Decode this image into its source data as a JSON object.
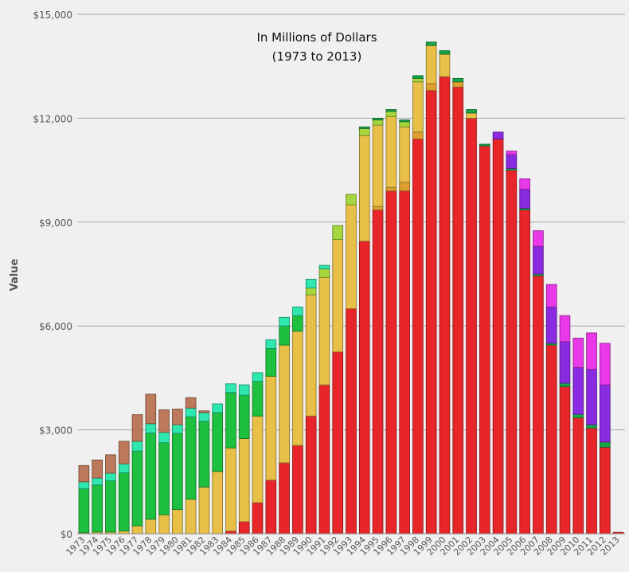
{
  "chart_data": {
    "type": "bar",
    "stacked": true,
    "annotation_line1": "In Millions of Dollars",
    "annotation_line2": "(1973 to 2013)",
    "ylabel": "Value",
    "ylim": [
      0,
      15000
    ],
    "yticks": [
      {
        "value": 0,
        "label": "$0"
      },
      {
        "value": 3000,
        "label": "$3,000"
      },
      {
        "value": 6000,
        "label": "$6,000"
      },
      {
        "value": 9000,
        "label": "$9,000"
      },
      {
        "value": 12000,
        "label": "$12,000"
      },
      {
        "value": 15000,
        "label": "$15,000"
      }
    ],
    "grid": true,
    "categories": [
      "1973",
      "1974",
      "1975",
      "1976",
      "1977",
      "1978",
      "1979",
      "1980",
      "1981",
      "1982",
      "1983",
      "1984",
      "1985",
      "1986",
      "1987",
      "1988",
      "1989",
      "1990",
      "1991",
      "1992",
      "1993",
      "1994",
      "1995",
      "1996",
      "1997",
      "1998",
      "1999",
      "2000",
      "2001",
      "2002",
      "2003",
      "2004",
      "2005",
      "2006",
      "2007",
      "2008",
      "2009",
      "2010",
      "2011",
      "2012",
      "2013"
    ],
    "series": [
      {
        "color": "#e8262a",
        "values": [
          0,
          0,
          0,
          0,
          0,
          0,
          0,
          0,
          0,
          0,
          0,
          80,
          350,
          900,
          1550,
          2050,
          2550,
          3400,
          4300,
          5250,
          6500,
          8450,
          9350,
          9900,
          9900,
          11400,
          12800,
          13200,
          12900,
          12000,
          11200,
          11400,
          10500,
          9350,
          7450,
          5450,
          4250,
          3350,
          3050,
          2500,
          40
        ]
      },
      {
        "color": "#e0a030",
        "values": [
          0,
          0,
          0,
          0,
          0,
          0,
          0,
          0,
          0,
          0,
          0,
          0,
          0,
          0,
          0,
          0,
          0,
          0,
          0,
          0,
          0,
          0,
          100,
          100,
          250,
          200,
          200,
          0,
          150,
          0,
          0,
          0,
          0,
          0,
          0,
          0,
          0,
          0,
          0,
          0,
          0
        ]
      },
      {
        "color": "#e8c048",
        "values": [
          30,
          50,
          50,
          80,
          230,
          420,
          550,
          700,
          1000,
          1350,
          1800,
          2400,
          2400,
          2500,
          3000,
          3400,
          3300,
          3500,
          3100,
          3250,
          3000,
          3050,
          2350,
          2050,
          1600,
          1450,
          1100,
          650,
          0,
          150,
          0,
          0,
          0,
          0,
          0,
          0,
          0,
          0,
          0,
          0,
          0
        ]
      },
      {
        "color": "#a6d63e",
        "values": [
          0,
          0,
          0,
          0,
          0,
          0,
          0,
          0,
          0,
          0,
          0,
          0,
          0,
          0,
          0,
          0,
          0,
          200,
          250,
          400,
          300,
          200,
          150,
          150,
          150,
          100,
          0,
          0,
          0,
          0,
          0,
          0,
          0,
          0,
          0,
          0,
          0,
          0,
          0,
          0,
          0
        ]
      },
      {
        "color": "#1ec040",
        "values": [
          1270,
          1360,
          1480,
          1680,
          2160,
          2490,
          2080,
          2200,
          2380,
          1900,
          1700,
          1600,
          1250,
          1000,
          800,
          550,
          450,
          0,
          0,
          0,
          0,
          0,
          0,
          0,
          0,
          0,
          0,
          0,
          0,
          0,
          0,
          0,
          0,
          0,
          0,
          0,
          0,
          0,
          0,
          0,
          0
        ]
      },
      {
        "color": "#18a848",
        "values": [
          0,
          0,
          0,
          0,
          0,
          0,
          0,
          0,
          0,
          0,
          0,
          0,
          0,
          0,
          0,
          0,
          0,
          0,
          0,
          0,
          0,
          50,
          50,
          50,
          50,
          80,
          100,
          100,
          100,
          100,
          50,
          0,
          50,
          50,
          50,
          50,
          100,
          100,
          100,
          150,
          0
        ]
      },
      {
        "color": "#2ee8b0",
        "values": [
          200,
          200,
          220,
          260,
          280,
          270,
          300,
          250,
          250,
          250,
          250,
          250,
          300,
          250,
          250,
          250,
          250,
          250,
          100,
          0,
          0,
          0,
          0,
          0,
          0,
          0,
          0,
          0,
          0,
          0,
          0,
          0,
          0,
          0,
          0,
          0,
          0,
          0,
          0,
          0,
          0
        ]
      },
      {
        "color": "#bc7a5a",
        "values": [
          470,
          520,
          530,
          650,
          770,
          850,
          650,
          450,
          300,
          50,
          0,
          0,
          0,
          0,
          0,
          0,
          0,
          0,
          0,
          0,
          0,
          0,
          0,
          0,
          0,
          0,
          0,
          0,
          0,
          0,
          0,
          0,
          0,
          0,
          0,
          0,
          0,
          0,
          0,
          0,
          0
        ]
      },
      {
        "color": "#8a2be2",
        "values": [
          0,
          0,
          0,
          0,
          0,
          0,
          0,
          0,
          0,
          0,
          0,
          0,
          0,
          0,
          0,
          0,
          0,
          0,
          0,
          0,
          0,
          0,
          0,
          0,
          0,
          0,
          0,
          0,
          0,
          0,
          0,
          200,
          400,
          550,
          800,
          1050,
          1200,
          1350,
          1600,
          1650,
          0
        ]
      },
      {
        "color": "#e838e8",
        "values": [
          0,
          0,
          0,
          0,
          0,
          0,
          0,
          0,
          0,
          0,
          0,
          0,
          0,
          0,
          0,
          0,
          0,
          0,
          0,
          0,
          0,
          0,
          0,
          0,
          0,
          0,
          0,
          0,
          0,
          0,
          0,
          0,
          100,
          300,
          450,
          650,
          750,
          850,
          1050,
          1200,
          0
        ]
      }
    ]
  }
}
